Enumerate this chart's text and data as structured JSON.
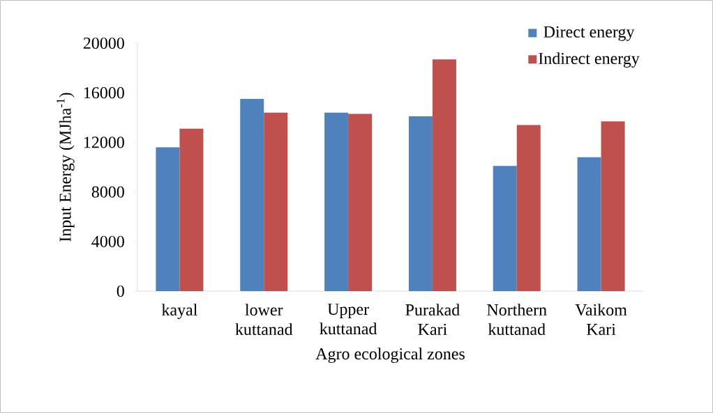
{
  "chart_data": {
    "type": "bar",
    "xlabel": "Agro ecological zones",
    "ylabel": "Input Energy (MJha$^{-1}$)",
    "categories": [
      "kayal",
      "lower kuttanad",
      "Upper kuttanad",
      "Purakad Kari",
      "Northern kuttanad",
      "Vaikom Kari"
    ],
    "series": [
      {
        "name": "Direct energy",
        "color": "#4f81bd",
        "values": [
          11600,
          15500,
          14400,
          14100,
          10100,
          10800
        ]
      },
      {
        "name": "Indirect energy",
        "color": "#c0504d",
        "values": [
          13100,
          14400,
          14300,
          18700,
          13400,
          13700
        ]
      }
    ],
    "ylim": [
      0,
      20000
    ],
    "yticks": [
      0,
      4000,
      8000,
      12000,
      16000,
      20000
    ],
    "grid": false,
    "legend": "top right"
  }
}
